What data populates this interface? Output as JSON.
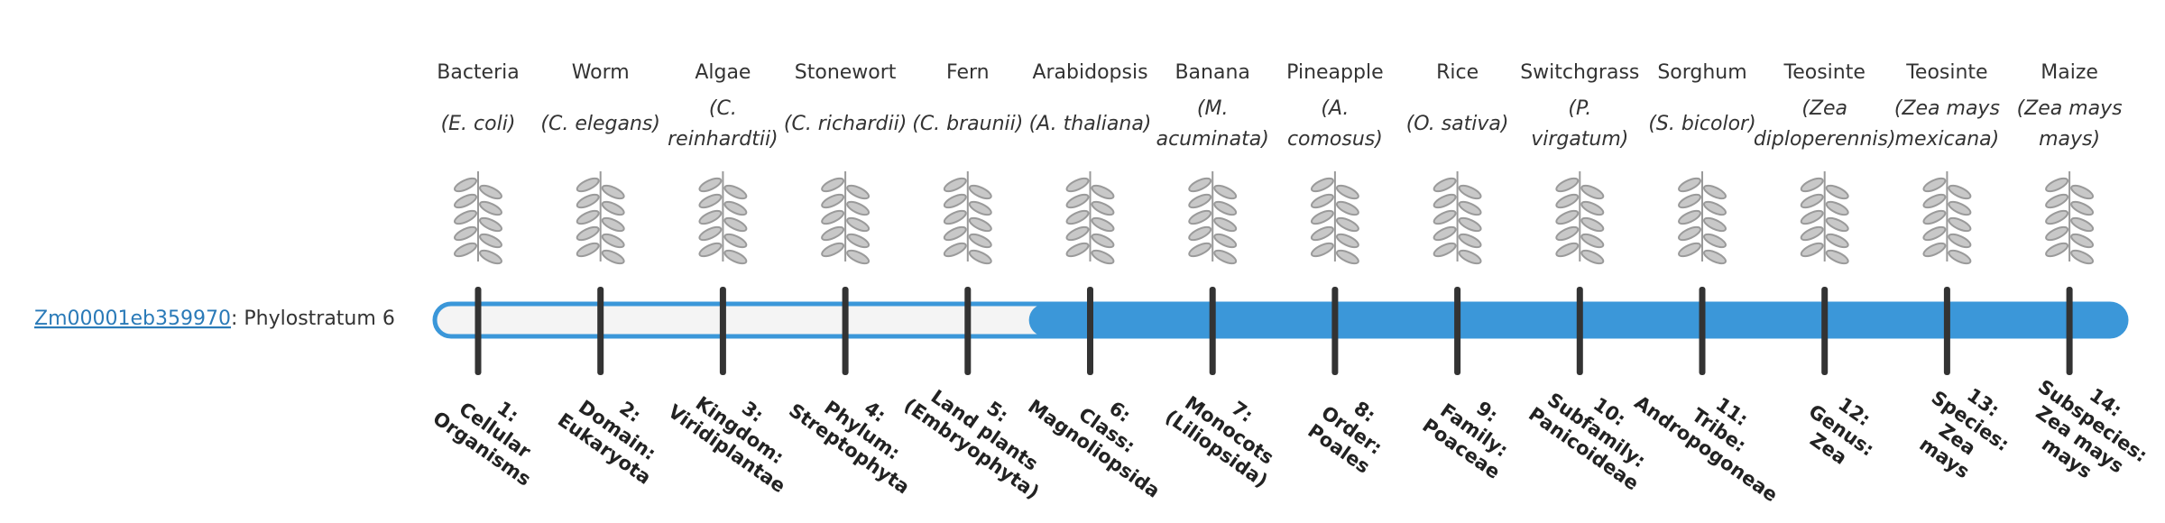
{
  "gene": {
    "id": "Zm00001eb359970",
    "label": ": Phylostratum",
    "phylostratum": 6
  },
  "columns": [
    {
      "name": "Bacteria",
      "species": [
        "(E. coli)"
      ],
      "stratum": [
        "1:",
        "Cellular",
        "Organisms"
      ]
    },
    {
      "name": "Worm",
      "species": [
        "(C. elegans)"
      ],
      "stratum": [
        "2:",
        "Domain:",
        "Eukaryota"
      ]
    },
    {
      "name": "Algae",
      "species": [
        "(C.",
        "reinhardtii)"
      ],
      "stratum": [
        "3:",
        "Kingdom:",
        "Viridiplantae"
      ]
    },
    {
      "name": "Stonewort",
      "species": [
        "(C. richardii)"
      ],
      "stratum": [
        "4:",
        "Phylum:",
        "Streptophyta"
      ]
    },
    {
      "name": "Fern",
      "species": [
        "(C. braunii)"
      ],
      "stratum": [
        "5:",
        "Land plants",
        "(Embryophyta)"
      ]
    },
    {
      "name": "Arabidopsis",
      "species": [
        "(A. thaliana)"
      ],
      "stratum": [
        "6:",
        "Class:",
        "Magnoliopsida"
      ]
    },
    {
      "name": "Banana",
      "species": [
        "(M.",
        "acuminata)"
      ],
      "stratum": [
        "7:",
        "Monocots",
        "(Liliopsida)"
      ]
    },
    {
      "name": "Pineapple",
      "species": [
        "(A.",
        "comosus)"
      ],
      "stratum": [
        "8:",
        "Order:",
        "Poales"
      ]
    },
    {
      "name": "Rice",
      "species": [
        "(O. sativa)"
      ],
      "stratum": [
        "9:",
        "Family:",
        "Poaceae"
      ]
    },
    {
      "name": "Switchgrass",
      "species": [
        "(P.",
        "virgatum)"
      ],
      "stratum": [
        "10:",
        "Subfamily:",
        "Panicoideae"
      ]
    },
    {
      "name": "Sorghum",
      "species": [
        "(S. bicolor)"
      ],
      "stratum": [
        "11:",
        "Tribe:",
        "Andropogoneae"
      ]
    },
    {
      "name": "Teosinte",
      "species": [
        "(Zea",
        "diploperennis)"
      ],
      "stratum": [
        "12:",
        "Genus:",
        "Zea"
      ]
    },
    {
      "name": "Teosinte",
      "species": [
        "(Zea mays",
        "mexicana)"
      ],
      "stratum": [
        "13:",
        "Species:",
        "Zea",
        "mays"
      ]
    },
    {
      "name": "Maize",
      "species": [
        "(Zea mays",
        "mays)"
      ],
      "stratum": [
        "14:",
        "Subspecies:",
        "Zea mays",
        "mays"
      ]
    }
  ]
}
